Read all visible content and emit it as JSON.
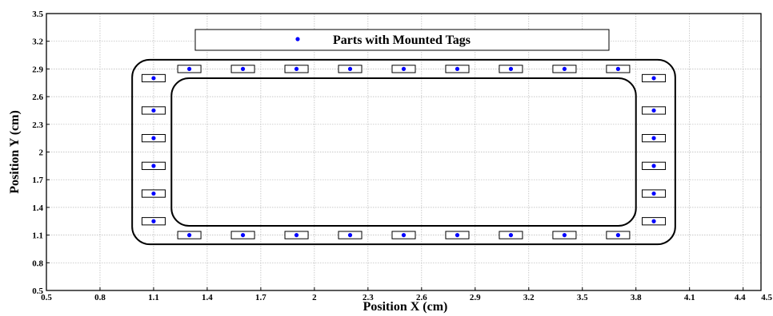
{
  "chart_data": {
    "type": "scatter",
    "xlabel": "Position X (cm)",
    "ylabel": "Position Y (cm)",
    "xlim": [
      0.5,
      4.5
    ],
    "ylim": [
      0.5,
      3.5
    ],
    "x_ticks": [
      0.5,
      0.8,
      1.1,
      1.4,
      1.7,
      2,
      2.3,
      2.6,
      2.9,
      3.2,
      3.5,
      3.8,
      4.1,
      4.4,
      4.5
    ],
    "x_tick_labels": [
      "0.5",
      "0.8",
      "1.1",
      "1.4",
      "1.7",
      "2",
      "2.3",
      "2.6",
      "2.9",
      "3.2",
      "3.5",
      "3.8",
      "4.1",
      "4.4",
      "4.5"
    ],
    "y_ticks": [
      0.5,
      0.8,
      1.1,
      1.4,
      1.7,
      2,
      2.3,
      2.6,
      2.9,
      3.2,
      3.5
    ],
    "y_tick_labels": [
      "0.5",
      "0.8",
      "1.1",
      "1.4",
      "1.7",
      "2",
      "2.3",
      "2.6",
      "2.9",
      "3.2",
      "3.5"
    ],
    "grid": true,
    "legend": {
      "position": "top-center",
      "entries": [
        "Parts with Mounted Tags"
      ]
    },
    "series": [
      {
        "name": "Parts with Mounted Tags",
        "color": "#0000ff",
        "marker": "dot",
        "box_size": [
          0.13,
          0.08
        ],
        "points": [
          {
            "x": 1.3,
            "y": 2.9
          },
          {
            "x": 1.6,
            "y": 2.9
          },
          {
            "x": 1.9,
            "y": 2.9
          },
          {
            "x": 2.2,
            "y": 2.9
          },
          {
            "x": 2.5,
            "y": 2.9
          },
          {
            "x": 2.8,
            "y": 2.9
          },
          {
            "x": 3.1,
            "y": 2.9
          },
          {
            "x": 3.4,
            "y": 2.9
          },
          {
            "x": 3.7,
            "y": 2.9
          },
          {
            "x": 1.3,
            "y": 1.1
          },
          {
            "x": 1.6,
            "y": 1.1
          },
          {
            "x": 1.9,
            "y": 1.1
          },
          {
            "x": 2.2,
            "y": 1.1
          },
          {
            "x": 2.5,
            "y": 1.1
          },
          {
            "x": 2.8,
            "y": 1.1
          },
          {
            "x": 3.1,
            "y": 1.1
          },
          {
            "x": 3.4,
            "y": 1.1
          },
          {
            "x": 3.7,
            "y": 1.1
          },
          {
            "x": 1.1,
            "y": 2.8
          },
          {
            "x": 1.1,
            "y": 2.45
          },
          {
            "x": 1.1,
            "y": 2.15
          },
          {
            "x": 1.1,
            "y": 1.85
          },
          {
            "x": 1.1,
            "y": 1.55
          },
          {
            "x": 1.1,
            "y": 1.25
          },
          {
            "x": 3.9,
            "y": 2.8
          },
          {
            "x": 3.9,
            "y": 2.45
          },
          {
            "x": 3.9,
            "y": 2.15
          },
          {
            "x": 3.9,
            "y": 1.85
          },
          {
            "x": 3.9,
            "y": 1.55
          },
          {
            "x": 3.9,
            "y": 1.25
          }
        ]
      }
    ],
    "outlines": [
      {
        "name": "outer-track",
        "x": [
          0.98,
          4.02
        ],
        "y": [
          1.0,
          3.0
        ]
      },
      {
        "name": "inner-track",
        "x": [
          1.2,
          3.8
        ],
        "y": [
          1.2,
          2.8
        ]
      }
    ]
  }
}
